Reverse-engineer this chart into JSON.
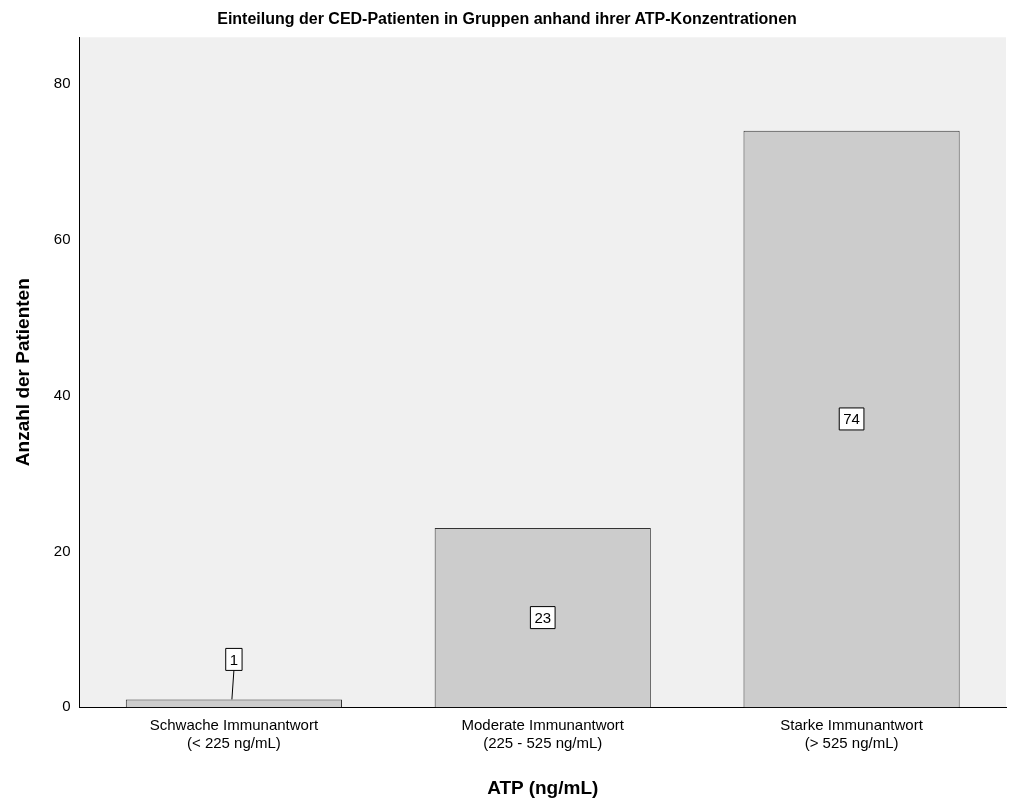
{
  "chart_data": {
    "type": "bar",
    "title": "Einteilung der CED-Patienten in Gruppen anhand ihrer ATP-Konzentrationen",
    "xlabel": "ATP (ng/mL)",
    "ylabel": "Anzahl der Patienten",
    "categories": [
      "Schwache Immunantwort\n(< 225 ng/mL)",
      "Moderate Immunantwort\n(225 - 525 ng/mL)",
      "Starke Immunantwort\n(> 525 ng/mL)"
    ],
    "values": [
      1,
      23,
      74
    ],
    "color": "#cccccc",
    "ylim": [
      0,
      86
    ],
    "yticks": [
      0,
      20,
      40,
      60,
      80
    ],
    "grid": false,
    "legend": false,
    "data_labels": true
  }
}
